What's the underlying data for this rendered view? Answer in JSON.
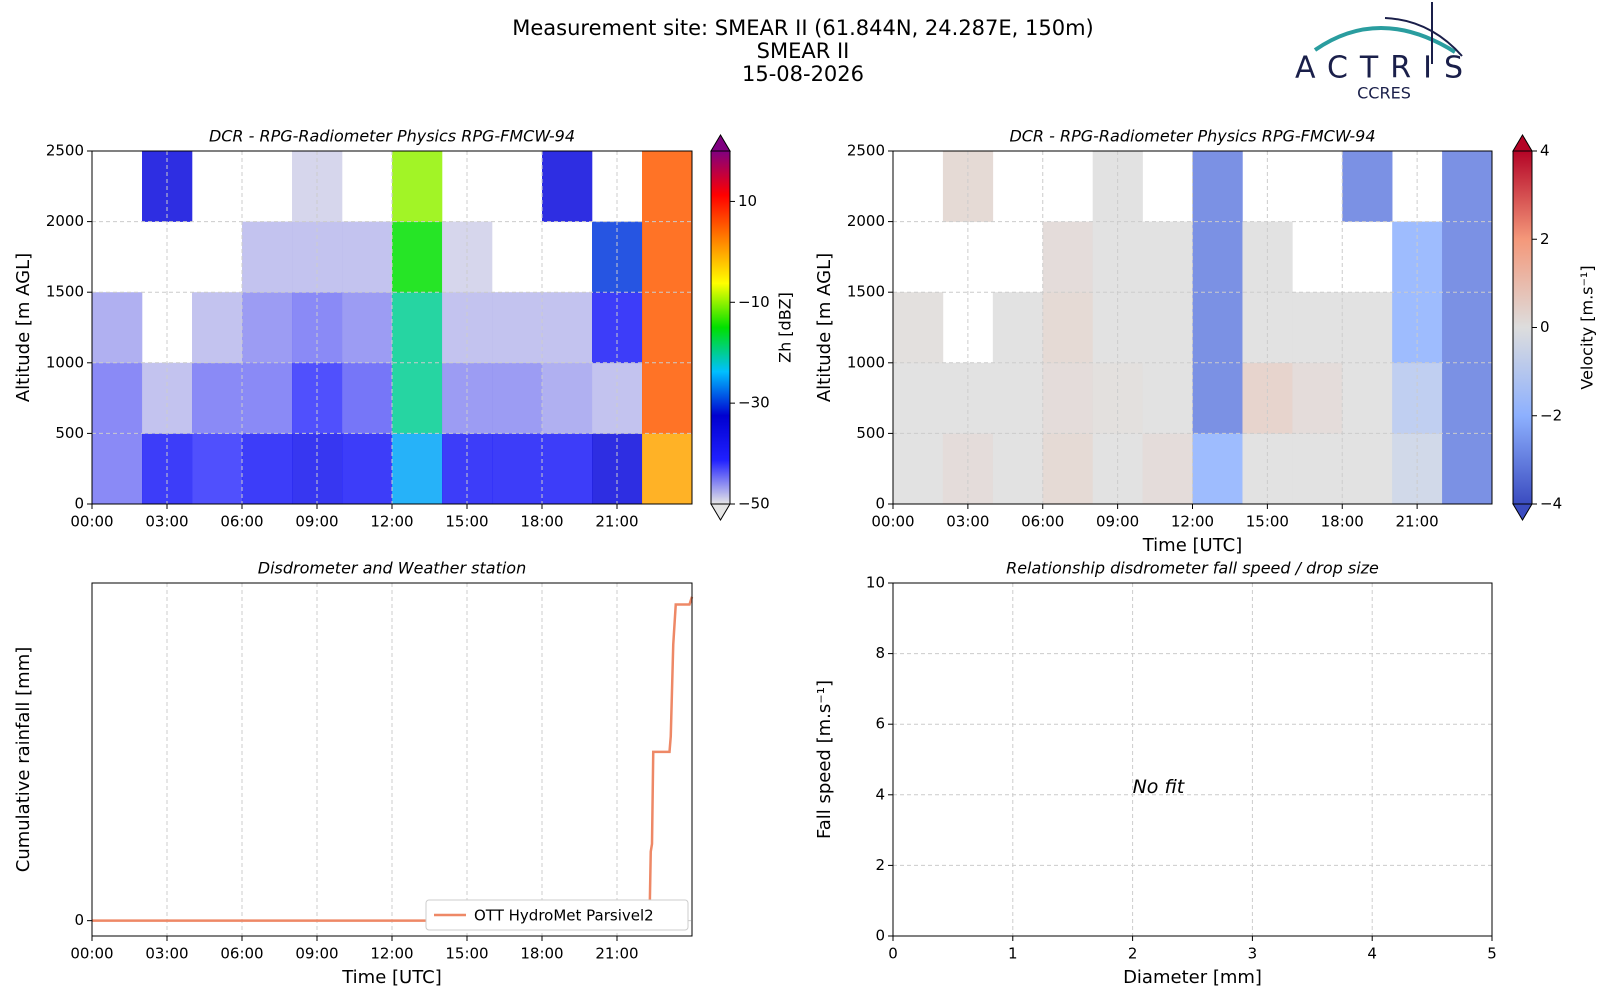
{
  "header": {
    "title": [
      "Measurement site: SMEAR II (61.844N, 24.287E, 150m)",
      "SMEAR II",
      "15-08-2026"
    ]
  },
  "logo": {
    "name": "ACTRIS",
    "sub": "CCRES"
  },
  "chart_data": [
    {
      "type": "heatmap",
      "title": "DCR - RPG-Radiometer Physics RPG-FMCW-94",
      "ylabel": "Altitude [m AGL]",
      "x": [
        0,
        2,
        4,
        6,
        8,
        10,
        12,
        14,
        16,
        18,
        20,
        22,
        24
      ],
      "y": [
        0,
        500,
        1000,
        1500,
        2000,
        2500
      ],
      "z": [
        [
          -45,
          -40,
          -42,
          -40,
          -38,
          -40,
          -25,
          -40,
          -40,
          -40,
          -35,
          0
        ],
        [
          -45,
          -48,
          -45,
          -45,
          -42,
          -44,
          -20,
          -46,
          -46,
          -47,
          -48,
          5
        ],
        [
          -47,
          null,
          -48,
          -46,
          -45,
          -46,
          -20,
          -48,
          -48,
          -48,
          -40,
          5
        ],
        [
          null,
          null,
          null,
          -48,
          -48,
          -48,
          -15,
          -49,
          null,
          null,
          -30,
          5
        ],
        [
          null,
          -35,
          null,
          null,
          -49,
          null,
          -10,
          null,
          null,
          -35,
          null,
          5
        ]
      ],
      "xlim": [
        0,
        24
      ],
      "ylim": [
        0,
        2500
      ],
      "xticks": [
        {
          "value": 0,
          "label": "00:00"
        },
        {
          "value": 3,
          "label": "03:00"
        },
        {
          "value": 6,
          "label": "06:00"
        },
        {
          "value": 9,
          "label": "09:00"
        },
        {
          "value": 12,
          "label": "12:00"
        },
        {
          "value": 15,
          "label": "15:00"
        },
        {
          "value": 18,
          "label": "18:00"
        },
        {
          "value": 21,
          "label": "21:00"
        }
      ],
      "yticks": [
        0,
        500,
        1000,
        1500,
        2000,
        2500
      ],
      "grid": true,
      "colorbar": {
        "label": "Zh [dBZ]",
        "lim": [
          -50,
          20
        ],
        "ticks": [
          {
            "value": -50,
            "label": "−50"
          },
          {
            "value": -30,
            "label": "−30"
          },
          {
            "value": -10,
            "label": "−10"
          },
          10
        ],
        "colormap": [
          "#e6e6e6",
          "#2020ff",
          "#0000d0",
          "#00c0ff",
          "#00e000",
          "#ffff00",
          "#ff8000",
          "#ff0000",
          "#800080"
        ]
      }
    },
    {
      "type": "heatmap",
      "title": "DCR - RPG-Radiometer Physics RPG-FMCW-94",
      "ylabel": "Altitude [m AGL]",
      "xlabel": "Time [UTC]",
      "x": [
        0,
        2,
        4,
        6,
        8,
        10,
        12,
        14,
        16,
        18,
        20,
        22,
        24
      ],
      "y": [
        0,
        500,
        1000,
        1500,
        2000,
        2500
      ],
      "z": [
        [
          0,
          0.2,
          0,
          0.3,
          0,
          0.2,
          -2,
          0,
          0,
          0,
          -0.5,
          -3
        ],
        [
          0,
          0,
          0,
          0.2,
          0.1,
          0,
          -3,
          0.5,
          0.2,
          0,
          -1,
          -3
        ],
        [
          0.1,
          null,
          0,
          0.3,
          0,
          0,
          -3,
          0,
          0,
          0,
          -2,
          -3
        ],
        [
          null,
          null,
          null,
          0.2,
          0,
          0,
          -3,
          0,
          null,
          null,
          -2,
          -3
        ],
        [
          null,
          0.3,
          null,
          null,
          0,
          null,
          -3,
          null,
          null,
          -3,
          null,
          -3
        ]
      ],
      "xlim": [
        0,
        24
      ],
      "ylim": [
        0,
        2500
      ],
      "xticks": [
        {
          "value": 0,
          "label": "00:00"
        },
        {
          "value": 3,
          "label": "03:00"
        },
        {
          "value": 6,
          "label": "06:00"
        },
        {
          "value": 9,
          "label": "09:00"
        },
        {
          "value": 12,
          "label": "12:00"
        },
        {
          "value": 15,
          "label": "15:00"
        },
        {
          "value": 18,
          "label": "18:00"
        },
        {
          "value": 21,
          "label": "21:00"
        }
      ],
      "yticks": [
        0,
        500,
        1000,
        1500,
        2000,
        2500
      ],
      "grid": true,
      "colorbar": {
        "label": "Velocity [m.s⁻¹]",
        "lim": [
          -4,
          4
        ],
        "ticks": [
          {
            "value": -4,
            "label": "−4"
          },
          {
            "value": -2,
            "label": "−2"
          },
          0,
          2,
          4
        ],
        "colormap": [
          "#3b4cc0",
          "#8db0fe",
          "#dddddd",
          "#f4987a",
          "#b40426"
        ]
      }
    },
    {
      "type": "line",
      "title": "Disdrometer and Weather station",
      "ylabel": "Cumulative rainfall [mm]",
      "xlabel": "Time [UTC]",
      "x": [
        0,
        22.3,
        22.35,
        22.4,
        22.45,
        23.1,
        23.15,
        23.25,
        23.35,
        23.9,
        24
      ],
      "series": [
        {
          "name": "OTT HydroMet Parsivel2",
          "color": "#ee8866",
          "values": [
            0,
            0,
            4.5,
            5,
            11,
            11,
            12,
            18,
            20.6,
            20.6,
            21.1
          ]
        }
      ],
      "xlim": [
        0,
        24
      ],
      "ylim": [
        -1,
        22
      ],
      "xticks": [
        {
          "value": 0,
          "label": "00:00"
        },
        {
          "value": 3,
          "label": "03:00"
        },
        {
          "value": 6,
          "label": "06:00"
        },
        {
          "value": 9,
          "label": "09:00"
        },
        {
          "value": 12,
          "label": "12:00"
        },
        {
          "value": 15,
          "label": "15:00"
        },
        {
          "value": 18,
          "label": "18:00"
        },
        {
          "value": 21,
          "label": "21:00"
        }
      ],
      "yticks": [
        0
      ],
      "grid": true,
      "legend": "lower right"
    },
    {
      "type": "scatter",
      "title": "Relationship disdrometer fall speed / drop size",
      "ylabel": "Fall speed [m.s⁻¹]",
      "xlabel": "Diameter [mm]",
      "annotation": "No fit",
      "xlim": [
        0,
        5
      ],
      "ylim": [
        0,
        10
      ],
      "xticks": [
        0,
        1,
        2,
        3,
        4,
        5
      ],
      "yticks": [
        0,
        2,
        4,
        6,
        8,
        10
      ],
      "grid": true
    }
  ]
}
